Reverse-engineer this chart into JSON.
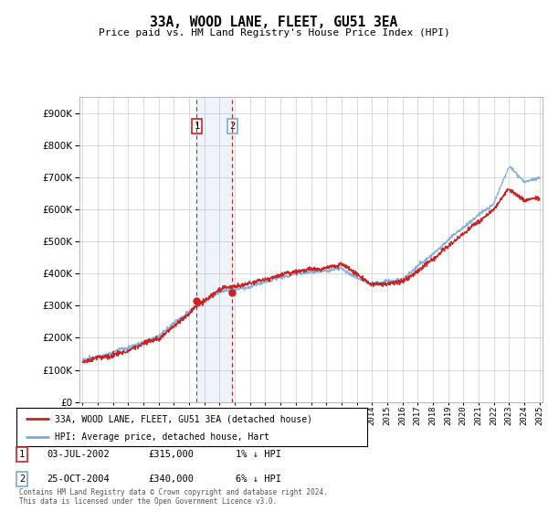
{
  "title": "33A, WOOD LANE, FLEET, GU51 3EA",
  "subtitle": "Price paid vs. HM Land Registry's House Price Index (HPI)",
  "legend_line1": "33A, WOOD LANE, FLEET, GU51 3EA (detached house)",
  "legend_line2": "HPI: Average price, detached house, Hart",
  "annotation1_label": "1",
  "annotation1_date": "03-JUL-2002",
  "annotation1_price": "£315,000",
  "annotation1_hpi": "1% ↓ HPI",
  "annotation2_label": "2",
  "annotation2_date": "25-OCT-2004",
  "annotation2_price": "£340,000",
  "annotation2_hpi": "6% ↓ HPI",
  "footer": "Contains HM Land Registry data © Crown copyright and database right 2024.\nThis data is licensed under the Open Government Licence v3.0.",
  "hpi_color": "#7aaadd",
  "price_color": "#cc2222",
  "vline_color": "#cc2222",
  "background_color": "#ffffff",
  "grid_color": "#cccccc",
  "ylim_min": 0,
  "ylim_max": 950000,
  "year_start": 1995,
  "year_end": 2025,
  "sale1_year": 2002.5,
  "sale1_price": 315000,
  "sale2_year": 2004.83,
  "sale2_price": 340000,
  "hpi_key_t": [
    0,
    2,
    5,
    7,
    9,
    12,
    14,
    17,
    19,
    21,
    23,
    25,
    27,
    28,
    29,
    30
  ],
  "hpi_key_v": [
    130000,
    155000,
    210000,
    290000,
    360000,
    390000,
    420000,
    440000,
    380000,
    400000,
    480000,
    560000,
    640000,
    750000,
    700000,
    720000
  ],
  "pp_key_t": [
    0,
    2,
    5,
    7,
    9,
    12,
    14,
    17,
    19,
    21,
    23,
    25,
    27,
    28,
    29,
    30
  ],
  "pp_key_v": [
    125000,
    150000,
    205000,
    285000,
    355000,
    385000,
    415000,
    430000,
    370000,
    390000,
    465000,
    540000,
    615000,
    680000,
    650000,
    660000
  ]
}
